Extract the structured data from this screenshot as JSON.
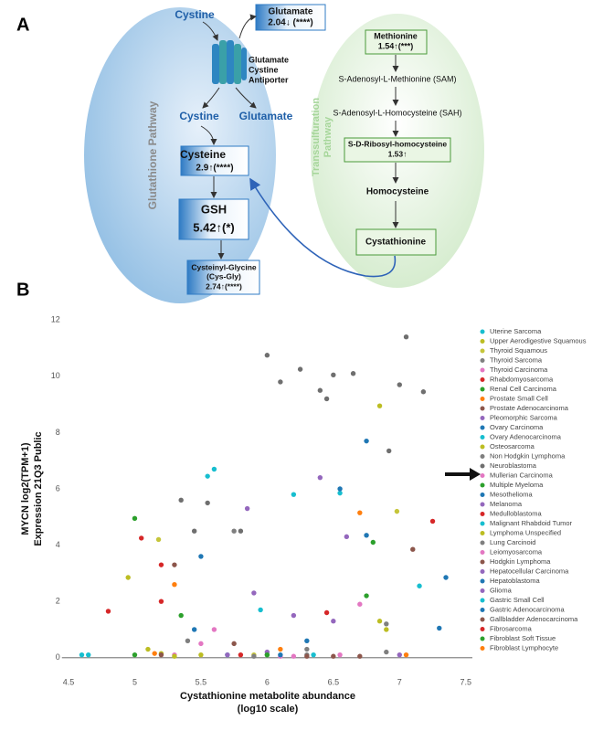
{
  "panel_a": {
    "label": "A",
    "cystine_in": "Cystine",
    "glutamate_out": {
      "name": "Glutamate",
      "value": "2.04↓ (****)"
    },
    "antiporter": [
      "Glutamate",
      "Cystine",
      "Antiporter"
    ],
    "cystine_low": "Cystine",
    "glutamate_low": "Glutamate",
    "glutathione_pathway": "Glutathione Pathway",
    "cysteine": {
      "name": "Cysteine",
      "value": "2.9↑(****)"
    },
    "gsh": {
      "name": "GSH",
      "value": "5.42↑(*)"
    },
    "cys_gly": {
      "name": [
        "Cysteinyl-Glycine",
        "(Cys-Gly)"
      ],
      "value": "2.74↑(****)"
    },
    "transsulfuration_pathway": [
      "Transsulfuration",
      "Pathway"
    ],
    "methionine": {
      "name": "Methionine",
      "value": "1.54↑(***)"
    },
    "sam": "S-Adenosyl-L-Methionine (SAM)",
    "sah": "S-Adenosyl-L-Homocysteine (SAH)",
    "sdr": {
      "name": "S-D-Ribosyl-homocysteine",
      "value": "1.53↑"
    },
    "homocysteine": "Homocysteine",
    "cystathionine": "Cystathionine"
  },
  "panel_b": {
    "label": "B"
  },
  "chart_data": {
    "type": "scatter",
    "y_label": [
      "MYCN log2(TPM+1)",
      "Expression 21Q3 Public"
    ],
    "x_label": [
      "Cystathionine metabolite abundance",
      "(log10 scale)"
    ],
    "xlim": [
      4.45,
      7.55
    ],
    "ylim": [
      -0.3,
      12.3
    ],
    "xticks": [
      4.5,
      5,
      5.5,
      6,
      6.5,
      7,
      7.5
    ],
    "yticks": [
      0,
      2,
      4,
      6,
      8,
      10,
      12
    ],
    "zeroline": true,
    "grid": false,
    "legend": "right",
    "series": [
      {
        "name": "Uterine Sarcoma",
        "color": "#17becf",
        "x": [
          5.6,
          6.55,
          7.15
        ],
        "values": [
          6.7,
          5.85,
          2.55
        ]
      },
      {
        "name": "Upper Aerodigestive Squamous",
        "color": "#bcbd22",
        "x": [
          4.95,
          6.85,
          5.2
        ],
        "values": [
          2.85,
          8.95,
          0.15
        ]
      },
      {
        "name": "Thyroid Squamous",
        "color": "#c5c53a",
        "x": [
          5.18,
          6.98,
          5.9
        ],
        "values": [
          4.2,
          5.2,
          0.1
        ]
      },
      {
        "name": "Thyroid Sarcoma",
        "color": "#7f7f7f",
        "x": [
          5.4,
          6.3,
          6.9
        ],
        "values": [
          0.6,
          0.3,
          0.2
        ]
      },
      {
        "name": "Thyroid Carcinoma",
        "color": "#e377c2",
        "x": [
          5.3,
          6.2,
          6.7
        ],
        "values": [
          0.1,
          0.05,
          1.9
        ]
      },
      {
        "name": "Rhabdomyosarcoma",
        "color": "#d62728",
        "x": [
          7.25,
          5.2,
          5.8
        ],
        "values": [
          4.85,
          3.3,
          0.1
        ]
      },
      {
        "name": "Renal Cell Carcinoma",
        "color": "#2ca02c",
        "x": [
          5.0,
          6.0,
          6.8
        ],
        "values": [
          4.95,
          0.1,
          4.1
        ]
      },
      {
        "name": "Prostate Small Cell",
        "color": "#ff7f0e",
        "x": [
          6.7,
          5.3,
          6.1
        ],
        "values": [
          5.15,
          2.6,
          0.3
        ]
      },
      {
        "name": "Prostate Adenocarcinoma",
        "color": "#8c564b",
        "x": [
          5.2,
          6.7,
          7.1
        ],
        "values": [
          0.1,
          0.05,
          3.85
        ]
      },
      {
        "name": "Pleomorphic Sarcoma",
        "color": "#9467bd",
        "x": [
          5.85,
          6.4,
          6.5
        ],
        "values": [
          5.3,
          6.4,
          1.3
        ]
      },
      {
        "name": "Ovary Carcinoma",
        "color": "#1f77b4",
        "x": [
          6.75,
          6.55,
          5.45
        ],
        "values": [
          7.7,
          6.0,
          1.0
        ]
      },
      {
        "name": "Ovary Adenocarcinoma",
        "color": "#17becf",
        "x": [
          5.55,
          6.2,
          5.7
        ],
        "values": [
          6.45,
          5.8,
          0.1
        ]
      },
      {
        "name": "Osteosarcoma",
        "color": "#bcbd22",
        "x": [
          5.1,
          6.85,
          5.5
        ],
        "values": [
          0.3,
          1.3,
          0.1
        ]
      },
      {
        "name": "Non Hodgkin Lymphoma",
        "color": "#7f7f7f",
        "x": [
          5.9,
          6.3
        ],
        "values": [
          0.05,
          0.1
        ]
      },
      {
        "name": "Neuroblastoma",
        "color": "#6f6f6f",
        "x": [
          6.0,
          6.1,
          6.25,
          6.4,
          6.45,
          6.5,
          6.65,
          7.05,
          7.0,
          7.18,
          6.92,
          5.55,
          5.35,
          5.45,
          5.8
        ],
        "values": [
          10.75,
          9.8,
          10.25,
          9.5,
          9.2,
          10.05,
          10.1,
          11.4,
          9.7,
          9.45,
          7.35,
          5.5,
          5.6,
          4.5,
          4.5
        ]
      },
      {
        "name": "Mullerian Carcinoma",
        "color": "#e377c2",
        "x": [
          5.6,
          6.1
        ],
        "values": [
          1.0,
          0.05
        ]
      },
      {
        "name": "Multiple Myeloma",
        "color": "#2ca02c",
        "x": [
          5.0,
          6.75
        ],
        "values": [
          0.1,
          2.2
        ]
      },
      {
        "name": "Mesothelioma",
        "color": "#1f77b4",
        "x": [
          7.35,
          6.3
        ],
        "values": [
          2.85,
          0.6
        ]
      },
      {
        "name": "Melanoma",
        "color": "#9467bd",
        "x": [
          6.6,
          5.9
        ],
        "values": [
          4.3,
          2.3
        ]
      },
      {
        "name": "Medulloblastoma",
        "color": "#d62728",
        "x": [
          5.05,
          6.45
        ],
        "values": [
          4.25,
          1.6
        ]
      },
      {
        "name": "Malignant Rhabdoid Tumor",
        "color": "#17becf",
        "x": [
          6.35,
          4.6
        ],
        "values": [
          0.1,
          0.1
        ]
      },
      {
        "name": "Lymphoma Unspecified",
        "color": "#bcbd22",
        "x": [
          6.9,
          5.3
        ],
        "values": [
          1.0,
          0.05
        ]
      },
      {
        "name": "Lung Carcinoid",
        "color": "#7f7f7f",
        "x": [
          5.75,
          6.9
        ],
        "values": [
          4.5,
          1.2
        ]
      },
      {
        "name": "Leiomyosarcoma",
        "color": "#e377c2",
        "x": [
          5.5,
          6.55
        ],
        "values": [
          0.5,
          0.1
        ]
      },
      {
        "name": "Hodgkin Lymphoma",
        "color": "#8c564b",
        "x": [
          5.3,
          6.3
        ],
        "values": [
          3.3,
          0.05
        ]
      },
      {
        "name": "Hepatocellular Carcinoma",
        "color": "#9467bd",
        "x": [
          6.0,
          7.0
        ],
        "values": [
          0.2,
          0.1
        ]
      },
      {
        "name": "Hepatoblastoma",
        "color": "#1f77b4",
        "x": [
          5.5,
          6.75
        ],
        "values": [
          3.6,
          4.35
        ]
      },
      {
        "name": "Glioma",
        "color": "#9467bd",
        "x": [
          5.7,
          6.2
        ],
        "values": [
          0.1,
          1.5
        ]
      },
      {
        "name": "Gastric Small Cell",
        "color": "#17becf",
        "x": [
          4.65,
          5.95
        ],
        "values": [
          0.1,
          1.7
        ]
      },
      {
        "name": "Gastric Adenocarcinoma",
        "color": "#1f77b4",
        "x": [
          6.1,
          7.3
        ],
        "values": [
          0.1,
          1.05
        ]
      },
      {
        "name": "Gallbladder Adenocarcinoma",
        "color": "#8c564b",
        "x": [
          6.5,
          5.75
        ],
        "values": [
          0.05,
          0.5
        ]
      },
      {
        "name": "Fibrosarcoma",
        "color": "#d62728",
        "x": [
          4.8,
          5.2
        ],
        "values": [
          1.65,
          2.0
        ]
      },
      {
        "name": "Fibroblast Soft Tissue",
        "color": "#2ca02c",
        "x": [
          5.35,
          6.0
        ],
        "values": [
          1.5,
          0.1
        ]
      },
      {
        "name": "Fibroblast Lymphocyte",
        "color": "#ff7f0e",
        "x": [
          5.15,
          7.05
        ],
        "values": [
          0.15,
          0.1
        ]
      }
    ]
  }
}
